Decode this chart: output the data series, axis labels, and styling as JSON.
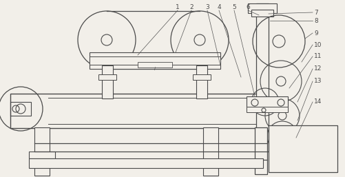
{
  "background_color": "#f2efe9",
  "line_color": "#4a4a4a",
  "fig_width": 5.02,
  "fig_height": 2.57,
  "dpi": 100,
  "labels_top": [
    "1",
    "2",
    "3",
    "4",
    "5",
    "6"
  ],
  "labels_right": [
    "7",
    "8",
    "9",
    "10",
    "11",
    "12",
    "13",
    "14"
  ]
}
